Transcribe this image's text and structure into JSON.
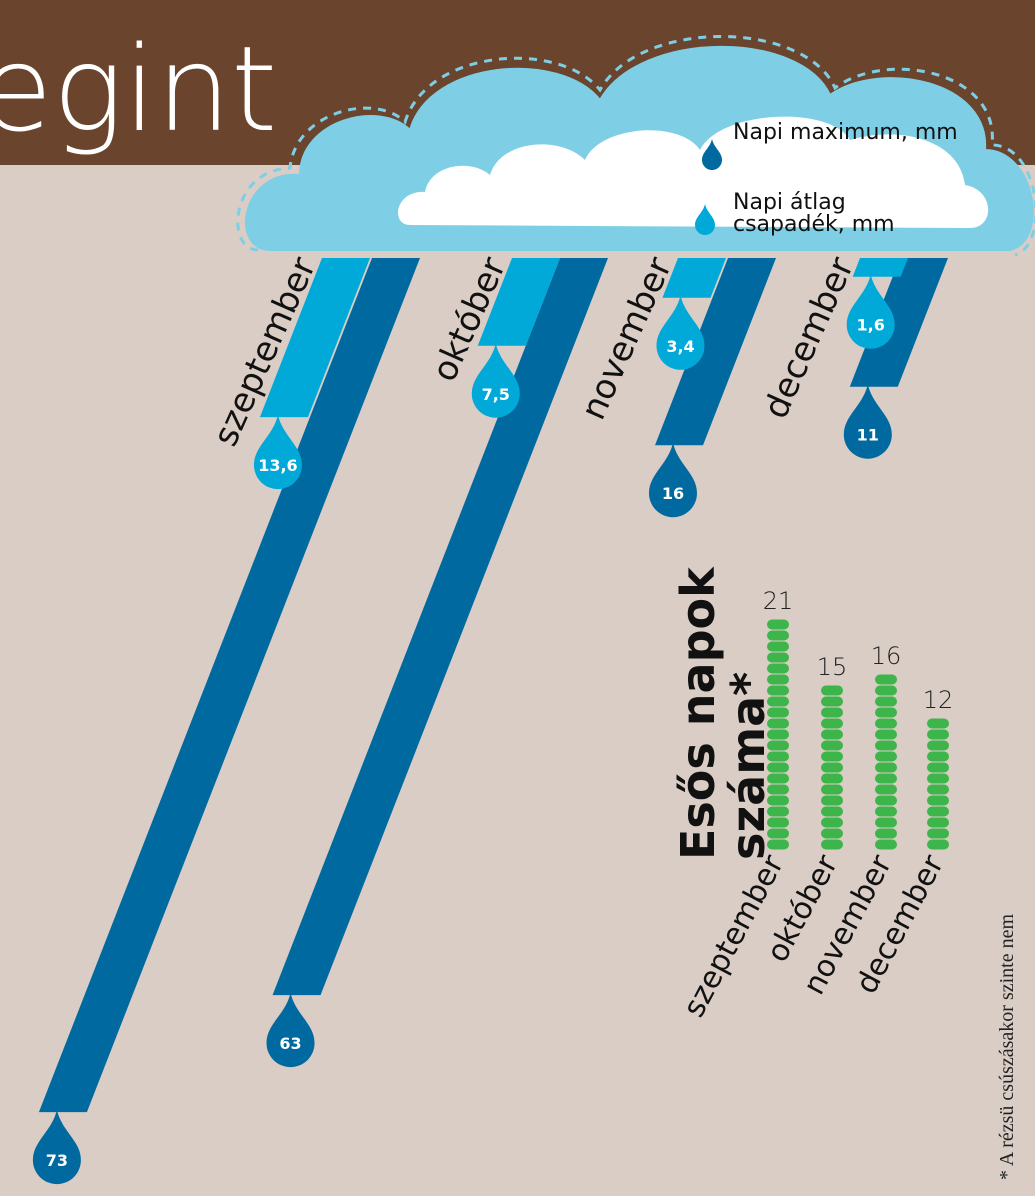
{
  "header": {
    "title": "egint"
  },
  "chart_data": [
    {
      "type": "slanted",
      "categories": [
        "szeptember",
        "október",
        "november",
        "december"
      ],
      "series": [
        {
          "name": "Napi maximum, mm",
          "color": "#00699f",
          "values": [
            73,
            63,
            16,
            11
          ]
        },
        {
          "name": "Napi átlag csapadék, mm",
          "color": "#00a9d8",
          "values": [
            13.6,
            7.5,
            3.4,
            1.6
          ],
          "value_labels": [
            "13,6",
            "7,5",
            "3,4",
            "1,6"
          ]
        }
      ]
    },
    {
      "type": "dots",
      "title": [
        "Esős napok",
        "száma*"
      ],
      "categories": [
        "szeptember",
        "október",
        "november",
        "december"
      ],
      "values": [
        21,
        15,
        16,
        12
      ],
      "color": "#3db54a",
      "footnote": "* A rézsü csúszásakor szinte nem"
    }
  ]
}
